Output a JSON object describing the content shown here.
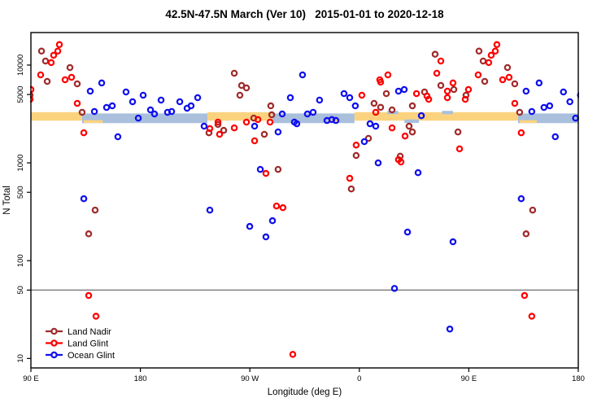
{
  "figure": {
    "title": "42.5N-47.5N March (Ver 10)   2015-01-01 to 2020-12-18",
    "x_axis_label": "Longitude (deg E)",
    "y_axis_label": "N Total"
  },
  "colors": {
    "land_nadir": "#A02C2C",
    "land_glint": "#FF0000",
    "ocean_glint": "#1010EE",
    "band_orange": "#FBD37F",
    "band_blue": "#A9BFDC",
    "reference_line": "#808080",
    "frame": "#000000"
  },
  "chart_data": {
    "type": "scatter",
    "title": "42.5N-47.5N March (Ver 10)   2015-01-01 to 2020-12-18",
    "xlabel": "Longitude (deg E)",
    "ylabel": "N Total",
    "x_scale": "linear",
    "y_scale": "log",
    "xlim": [
      90,
      540
    ],
    "ylim": [
      8,
      21500
    ],
    "grid": false,
    "x_ticks": [
      {
        "v": 90,
        "label": "90 E"
      },
      {
        "v": 180,
        "label": "180"
      },
      {
        "v": 270,
        "label": "90 W"
      },
      {
        "v": 360,
        "label": "0"
      },
      {
        "v": 450,
        "label": "90 E"
      },
      {
        "v": 540,
        "label": "180"
      }
    ],
    "y_ticks": [
      {
        "v": 10,
        "label": "10"
      },
      {
        "v": 50,
        "label": "50"
      },
      {
        "v": 100,
        "label": "100"
      },
      {
        "v": 500,
        "label": "500"
      },
      {
        "v": 1000,
        "label": "1000"
      },
      {
        "v": 5000,
        "label": "5000"
      },
      {
        "v": 10000,
        "label": "10000"
      }
    ],
    "reference_line_y": 50,
    "bands": {
      "orange_n_range": [
        2700,
        3300
      ],
      "blue_n_range": [
        2550,
        3200
      ],
      "orange_segments_lon": [
        [
          90,
          132.1
        ],
        [
          235.1,
          288.6
        ],
        [
          356,
          490.5
        ]
      ],
      "blue_segments_lon": [
        [
          132.1,
          235.1
        ],
        [
          288.6,
          356
        ],
        [
          490.5,
          540
        ]
      ]
    },
    "patches": [
      {
        "color_key": "band_orange",
        "lon": [
          133.5,
          149
        ],
        "n": [
          2560,
          2730
        ]
      },
      {
        "color_key": "band_orange",
        "lon": [
          334,
          343
        ],
        "n": [
          2600,
          2780
        ]
      },
      {
        "color_key": "band_blue",
        "lon": [
          383,
          392
        ],
        "n": [
          3150,
          3400
        ]
      },
      {
        "color_key": "band_blue",
        "lon": [
          397,
          409
        ],
        "n": [
          2560,
          2780
        ]
      },
      {
        "color_key": "band_blue",
        "lon": [
          428,
          437
        ],
        "n": [
          3150,
          3400
        ]
      },
      {
        "color_key": "band_orange",
        "lon": [
          492,
          506
        ],
        "n": [
          2560,
          2730
        ]
      }
    ],
    "legend": {
      "position": "bottom-left",
      "entries": [
        "Land Nadir",
        "Land Glint",
        "Ocean Glint"
      ]
    },
    "series": [
      {
        "name": "Land Nadir",
        "color_key": "land_nadir",
        "points": [
          [
            89.3,
            4920
          ],
          [
            98.7,
            13900
          ],
          [
            102,
            11000
          ],
          [
            103.4,
            6810
          ],
          [
            122.1,
            9440
          ],
          [
            128.1,
            6430
          ],
          [
            132.1,
            3290
          ],
          [
            137.5,
            188
          ],
          [
            142.8,
            329
          ],
          [
            236.4,
            2030
          ],
          [
            243.8,
            2470
          ],
          [
            248.5,
            2150
          ],
          [
            257.2,
            8250
          ],
          [
            261.8,
            4920
          ],
          [
            263.2,
            6190
          ],
          [
            267.2,
            5840
          ],
          [
            273.2,
            2870
          ],
          [
            281.9,
            1960
          ],
          [
            287.2,
            3830
          ],
          [
            288,
            3100
          ],
          [
            293.2,
            858
          ],
          [
            353.4,
            541
          ],
          [
            357.4,
            1190
          ],
          [
            367.5,
            1780
          ],
          [
            372.1,
            4060
          ],
          [
            377.5,
            3700
          ],
          [
            382.2,
            5110
          ],
          [
            386.9,
            3480
          ],
          [
            393.6,
            1170
          ],
          [
            400.9,
            2370
          ],
          [
            403.6,
            2070
          ],
          [
            403.6,
            3830
          ],
          [
            413.6,
            5310
          ],
          [
            422.3,
            12900
          ],
          [
            427,
            6190
          ],
          [
            437.7,
            5620
          ],
          [
            441.1,
            2070
          ],
          [
            447.7,
            4920
          ],
          [
            458.4,
            13900
          ],
          [
            461.8,
            11000
          ],
          [
            463.1,
            6810
          ],
          [
            481.8,
            9440
          ],
          [
            487.8,
            6430
          ],
          [
            491.8,
            3290
          ],
          [
            497.1,
            188
          ],
          [
            502.5,
            329
          ]
        ]
      },
      {
        "name": "Land Glint",
        "color_key": "land_glint",
        "points": [
          [
            89.3,
            4470
          ],
          [
            90,
            5620
          ],
          [
            98,
            7940
          ],
          [
            106.7,
            10600
          ],
          [
            108.7,
            12600
          ],
          [
            112.1,
            13900
          ],
          [
            113.4,
            16200
          ],
          [
            118.1,
            7080
          ],
          [
            123.4,
            7500
          ],
          [
            128.1,
            4060
          ],
          [
            133.5,
            2030
          ],
          [
            137.5,
            44
          ],
          [
            143.5,
            27
          ],
          [
            237.1,
            2240
          ],
          [
            243.8,
            2610
          ],
          [
            245.1,
            1960
          ],
          [
            257.2,
            2280
          ],
          [
            267.2,
            2610
          ],
          [
            273.9,
            1680
          ],
          [
            276.6,
            2770
          ],
          [
            283.2,
            780
          ],
          [
            286.6,
            2610
          ],
          [
            291.9,
            362
          ],
          [
            297.2,
            348
          ],
          [
            305.3,
            11
          ],
          [
            352.1,
            695
          ],
          [
            357.4,
            1520
          ],
          [
            362.1,
            4920
          ],
          [
            373.5,
            3290
          ],
          [
            376.8,
            7080
          ],
          [
            377.5,
            6700
          ],
          [
            383.5,
            7940
          ],
          [
            386.9,
            2280
          ],
          [
            392.2,
            1080
          ],
          [
            394.2,
            1020
          ],
          [
            397.6,
            1880
          ],
          [
            407,
            5110
          ],
          [
            415.6,
            4820
          ],
          [
            417,
            4470
          ],
          [
            423.7,
            8250
          ],
          [
            427,
            11000
          ],
          [
            432.4,
            5410
          ],
          [
            432.4,
            4640
          ],
          [
            437,
            6560
          ],
          [
            442.4,
            1390
          ],
          [
            447.1,
            4470
          ],
          [
            449.7,
            5620
          ],
          [
            457.7,
            7940
          ],
          [
            466.4,
            10600
          ],
          [
            468.4,
            12600
          ],
          [
            471.8,
            13900
          ],
          [
            473.1,
            16200
          ],
          [
            477.8,
            7080
          ],
          [
            483.1,
            7500
          ],
          [
            487.8,
            4060
          ],
          [
            493.1,
            2030
          ],
          [
            495.8,
            44
          ],
          [
            501.8,
            27
          ]
        ]
      },
      {
        "name": "Ocean Glint",
        "color_key": "ocean_glint",
        "points": [
          [
            133.5,
            430
          ],
          [
            138.8,
            5410
          ],
          [
            142.2,
            3350
          ],
          [
            148.2,
            6560
          ],
          [
            152.2,
            3690
          ],
          [
            156.9,
            3830
          ],
          [
            161.5,
            1850
          ],
          [
            168.2,
            5310
          ],
          [
            173.6,
            4220
          ],
          [
            178.3,
            2870
          ],
          [
            182.3,
            4920
          ],
          [
            188.3,
            3480
          ],
          [
            191.6,
            3160
          ],
          [
            197,
            4380
          ],
          [
            202.3,
            3290
          ],
          [
            205.7,
            3350
          ],
          [
            212.4,
            4220
          ],
          [
            218.4,
            3620
          ],
          [
            221.7,
            3830
          ],
          [
            227.1,
            4640
          ],
          [
            232.4,
            2370
          ],
          [
            237.1,
            329
          ],
          [
            269.9,
            224
          ],
          [
            273.9,
            2370
          ],
          [
            278.6,
            858
          ],
          [
            283.2,
            175
          ],
          [
            288.6,
            256
          ],
          [
            293.2,
            2070
          ],
          [
            296.6,
            3160
          ],
          [
            303.3,
            4640
          ],
          [
            306.6,
            2610
          ],
          [
            308.6,
            2510
          ],
          [
            313.3,
            7940
          ],
          [
            317.3,
            3160
          ],
          [
            322,
            3290
          ],
          [
            327.3,
            4380
          ],
          [
            333.4,
            2710
          ],
          [
            337.4,
            2770
          ],
          [
            340.7,
            2710
          ],
          [
            347.4,
            5110
          ],
          [
            352.1,
            4640
          ],
          [
            356.7,
            3830
          ],
          [
            364.1,
            1650
          ],
          [
            368.8,
            2510
          ],
          [
            373.5,
            2370
          ],
          [
            375.5,
            1000
          ],
          [
            388.9,
            52
          ],
          [
            392.2,
            5410
          ],
          [
            396.9,
            5620
          ],
          [
            399.6,
            196
          ],
          [
            408.3,
            794
          ],
          [
            411,
            3040
          ],
          [
            434.4,
            20
          ],
          [
            437,
            156
          ],
          [
            493.1,
            430
          ],
          [
            497.1,
            5410
          ],
          [
            501.8,
            3350
          ],
          [
            507.8,
            6560
          ],
          [
            511.8,
            3690
          ],
          [
            516.5,
            3830
          ],
          [
            521.1,
            1850
          ],
          [
            527.8,
            5310
          ],
          [
            533.1,
            4220
          ],
          [
            537.8,
            2870
          ],
          [
            541.8,
            4920
          ]
        ]
      }
    ]
  }
}
